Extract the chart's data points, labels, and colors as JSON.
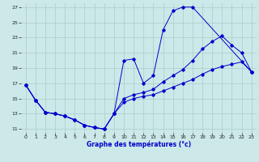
{
  "bg_color": "#cce8e8",
  "grid_color": "#aacccc",
  "line_color": "#0000cc",
  "xlim": [
    -0.5,
    23.5
  ],
  "ylim": [
    10.5,
    27.5
  ],
  "xticks": [
    0,
    1,
    2,
    3,
    4,
    5,
    6,
    7,
    8,
    9,
    10,
    11,
    12,
    13,
    14,
    15,
    16,
    17,
    18,
    19,
    20,
    21,
    22,
    23
  ],
  "yticks": [
    11,
    13,
    15,
    17,
    19,
    21,
    23,
    25,
    27
  ],
  "xlabel": "Graphe des températures (°c)",
  "series1_x": [
    0,
    1,
    2,
    3,
    4,
    5,
    6,
    7,
    8,
    9,
    10,
    11,
    12,
    13,
    14,
    15,
    16,
    17,
    23
  ],
  "series1_y": [
    16.8,
    14.8,
    13.2,
    13.0,
    12.7,
    12.2,
    11.5,
    11.2,
    11.0,
    13.0,
    20.0,
    20.2,
    17.0,
    18.0,
    24.0,
    26.5,
    27.0,
    27.0,
    18.5
  ],
  "series2_x": [
    0,
    1,
    2,
    3,
    4,
    5,
    6,
    7,
    8,
    9,
    10,
    11,
    12,
    13,
    14,
    15,
    16,
    17,
    18,
    19,
    20,
    21,
    22,
    23
  ],
  "series2_y": [
    16.8,
    14.8,
    13.2,
    13.0,
    12.7,
    12.2,
    11.5,
    11.2,
    11.0,
    13.0,
    15.0,
    15.5,
    15.8,
    16.2,
    17.2,
    18.0,
    18.8,
    20.0,
    21.5,
    22.5,
    23.2,
    22.0,
    21.0,
    18.5
  ],
  "series3_x": [
    0,
    1,
    2,
    3,
    4,
    5,
    6,
    7,
    8,
    9,
    10,
    11,
    12,
    13,
    14,
    15,
    16,
    17,
    18,
    19,
    20,
    21,
    22,
    23
  ],
  "series3_y": [
    16.8,
    14.8,
    13.2,
    13.0,
    12.7,
    12.2,
    11.5,
    11.2,
    11.0,
    13.0,
    14.5,
    15.0,
    15.3,
    15.5,
    16.0,
    16.5,
    17.0,
    17.5,
    18.2,
    18.8,
    19.2,
    19.5,
    19.8,
    18.5
  ]
}
